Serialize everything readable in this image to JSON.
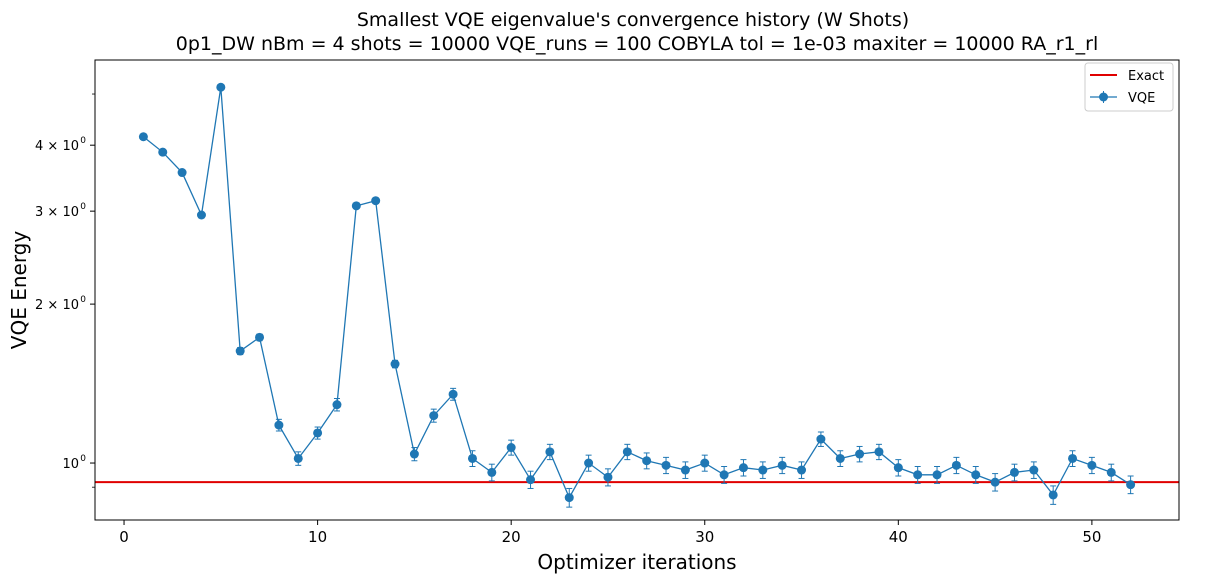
{
  "chart_data": {
    "type": "line",
    "title": "Smallest VQE eigenvalue's convergence history (W Shots)",
    "subtitle": "0p1_DW    nBm = 4    shots = 10000   VQE_runs = 100    COBYLA    tol = 1e-03    maxiter = 10000    RA_r1_rl",
    "xlabel": "Optimizer iterations",
    "ylabel": "VQE Energy",
    "xlim": [
      -1.5,
      54.5
    ],
    "ylim": [
      0.78,
      5.8
    ],
    "yscale": "log",
    "xticks": [
      0,
      10,
      20,
      30,
      40,
      50
    ],
    "xtick_labels": [
      "0",
      "10",
      "20",
      "30",
      "40",
      "50"
    ],
    "yticks": [
      1,
      2,
      3,
      4
    ],
    "ytick_labels": [
      "10",
      "2 × 10",
      "3 × 10",
      "4 × 10"
    ],
    "ytick_exponent": "0",
    "legend_position": "top-right",
    "grid": false,
    "exact": {
      "name": "Exact",
      "value": 0.92,
      "color": "#e00000"
    },
    "series": [
      {
        "name": "VQE",
        "color": "#1f77b4",
        "x": [
          1,
          2,
          3,
          4,
          5,
          6,
          7,
          8,
          9,
          10,
          11,
          12,
          13,
          14,
          15,
          16,
          17,
          18,
          19,
          20,
          21,
          22,
          23,
          24,
          25,
          26,
          27,
          28,
          29,
          30,
          31,
          32,
          33,
          34,
          35,
          36,
          37,
          38,
          39,
          40,
          41,
          42,
          43,
          44,
          45,
          46,
          47,
          48,
          49,
          50,
          51,
          52
        ],
        "values": [
          4.15,
          3.88,
          3.55,
          2.95,
          5.15,
          1.63,
          1.73,
          1.18,
          1.02,
          1.14,
          1.29,
          3.07,
          3.14,
          1.54,
          1.04,
          1.23,
          1.35,
          1.02,
          0.96,
          1.07,
          0.93,
          1.05,
          0.86,
          1.0,
          0.94,
          1.05,
          1.01,
          0.99,
          0.97,
          1.0,
          0.95,
          0.98,
          0.97,
          0.99,
          0.97,
          1.11,
          1.02,
          1.04,
          1.05,
          0.98,
          0.95,
          0.95,
          0.99,
          0.95,
          0.92,
          0.96,
          0.97,
          0.87,
          1.02,
          0.99,
          0.96,
          0.91
        ],
        "errors": [
          0,
          0,
          0,
          0,
          0,
          0.025,
          0.025,
          0.03,
          0.03,
          0.03,
          0.035,
          0,
          0,
          0.025,
          0.03,
          0.035,
          0.035,
          0.035,
          0.035,
          0.035,
          0.035,
          0.035,
          0.035,
          0.035,
          0.035,
          0.035,
          0.035,
          0.035,
          0.035,
          0.035,
          0.035,
          0.035,
          0.035,
          0.035,
          0.035,
          0.035,
          0.035,
          0.035,
          0.035,
          0.035,
          0.035,
          0.035,
          0.035,
          0.035,
          0.035,
          0.035,
          0.035,
          0.035,
          0.035,
          0.035,
          0.035,
          0.035
        ]
      }
    ]
  }
}
